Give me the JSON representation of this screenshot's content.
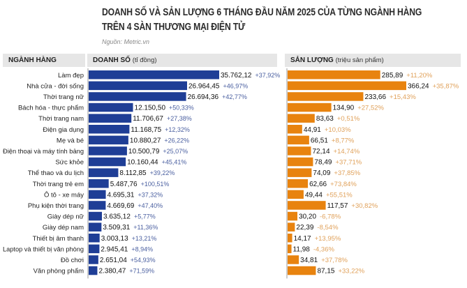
{
  "title_line1": "DOANH SỐ VÀ SẢN LƯỢNG 6 THÁNG ĐẦU NĂM 2025 CỦA TỪNG NGÀNH HÀNG",
  "title_line2": "TRÊN 4 SÀN THƯƠNG MẠI ĐIỆN TỬ",
  "source": "Nguồn: Metric.vn",
  "headers": {
    "category": "NGÀNH HÀNG",
    "revenue": "DOANH SỐ",
    "revenue_unit": "(tỉ đồng)",
    "volume": "SẢN LƯỢNG",
    "volume_unit": "(triệu sản phẩm)"
  },
  "colors": {
    "revenue": "#1f3e96",
    "volume": "#e8830f",
    "revenue_growth": "#4a5fa0",
    "volume_growth": "#e0a15a"
  },
  "chart_data": {
    "type": "bar",
    "categories": [
      "Làm đẹp",
      "Nhà cửa - đời sống",
      "Thời trang nữ",
      "Bách hóa - thực phẩm",
      "Thời trang nam",
      "Điện gia dụng",
      "Mẹ và bé",
      "Điện thoại và máy tính bảng",
      "Sức khỏe",
      "Thể thao và du lịch",
      "Thời trang trẻ em",
      "Ô tô - xe máy",
      "Phụ kiện thời trang",
      "Giày dép nữ",
      "Giày dép nam",
      "Thiết bị âm thanh",
      "Laptop và thiết bị văn phòng",
      "Đồ chơi",
      "Văn phòng phẩm"
    ],
    "series": [
      {
        "name": "Doanh số (tỉ đồng)",
        "values": [
          35762.12,
          26964.45,
          26694.36,
          12150.5,
          11706.67,
          11168.75,
          10880.27,
          10500.79,
          10160.44,
          8112.85,
          5487.76,
          4695.31,
          4669.69,
          3635.12,
          3509.31,
          3003.13,
          2945.41,
          2651.04,
          2380.47
        ],
        "labels": [
          "35.762,12",
          "26.964,45",
          "26.694,36",
          "12.150,50",
          "11.706,67",
          "11.168,75",
          "10.880,27",
          "10.500,79",
          "10.160,44",
          "8.112,85",
          "5.487,76",
          "4.695,31",
          "4.669,69",
          "3.635,12",
          "3.509,31",
          "3.003,13",
          "2.945,41",
          "2.651,04",
          "2.380,47"
        ],
        "growth": [
          "+37,92%",
          "+46,97%",
          "+42,77%",
          "+50,33%",
          "+27,38%",
          "+12,32%",
          "+26,22%",
          "+25,07%",
          "+45,41%",
          "+39,22%",
          "+100,51%",
          "+37,32%",
          "+47,40%",
          "+5,77%",
          "+11,36%",
          "+13,21%",
          "+8,94%",
          "+54,93%",
          "+71,59%"
        ]
      },
      {
        "name": "Sản lượng (triệu sản phẩm)",
        "values": [
          285.89,
          366.24,
          233.66,
          134.9,
          83.63,
          44.91,
          66.51,
          72.14,
          78.49,
          74.09,
          62.66,
          49.44,
          117.57,
          30.2,
          22.39,
          14.17,
          11.98,
          34.81,
          87.15
        ],
        "labels": [
          "285,89",
          "366,24",
          "233,66",
          "134,90",
          "83,63",
          "44,91",
          "66,51",
          "72,14",
          "78,49",
          "74,09",
          "62,66",
          "49,44",
          "117,57",
          "30,20",
          "22,39",
          "14,17",
          "11,98",
          "34,81",
          "87,15"
        ],
        "growth": [
          "+11,20%",
          "+35,87%",
          "+15,43%",
          "+27,52%",
          "+0,51%",
          "+10,03%",
          "+8,77%",
          "+14,74%",
          "+37,71%",
          "+37,85%",
          "+73,84%",
          "+55,51%",
          "+30,82%",
          "-6,78%",
          "-8,54%",
          "+13,95%",
          "-4,36%",
          "+37,78%",
          "+33,22%"
        ]
      }
    ]
  }
}
